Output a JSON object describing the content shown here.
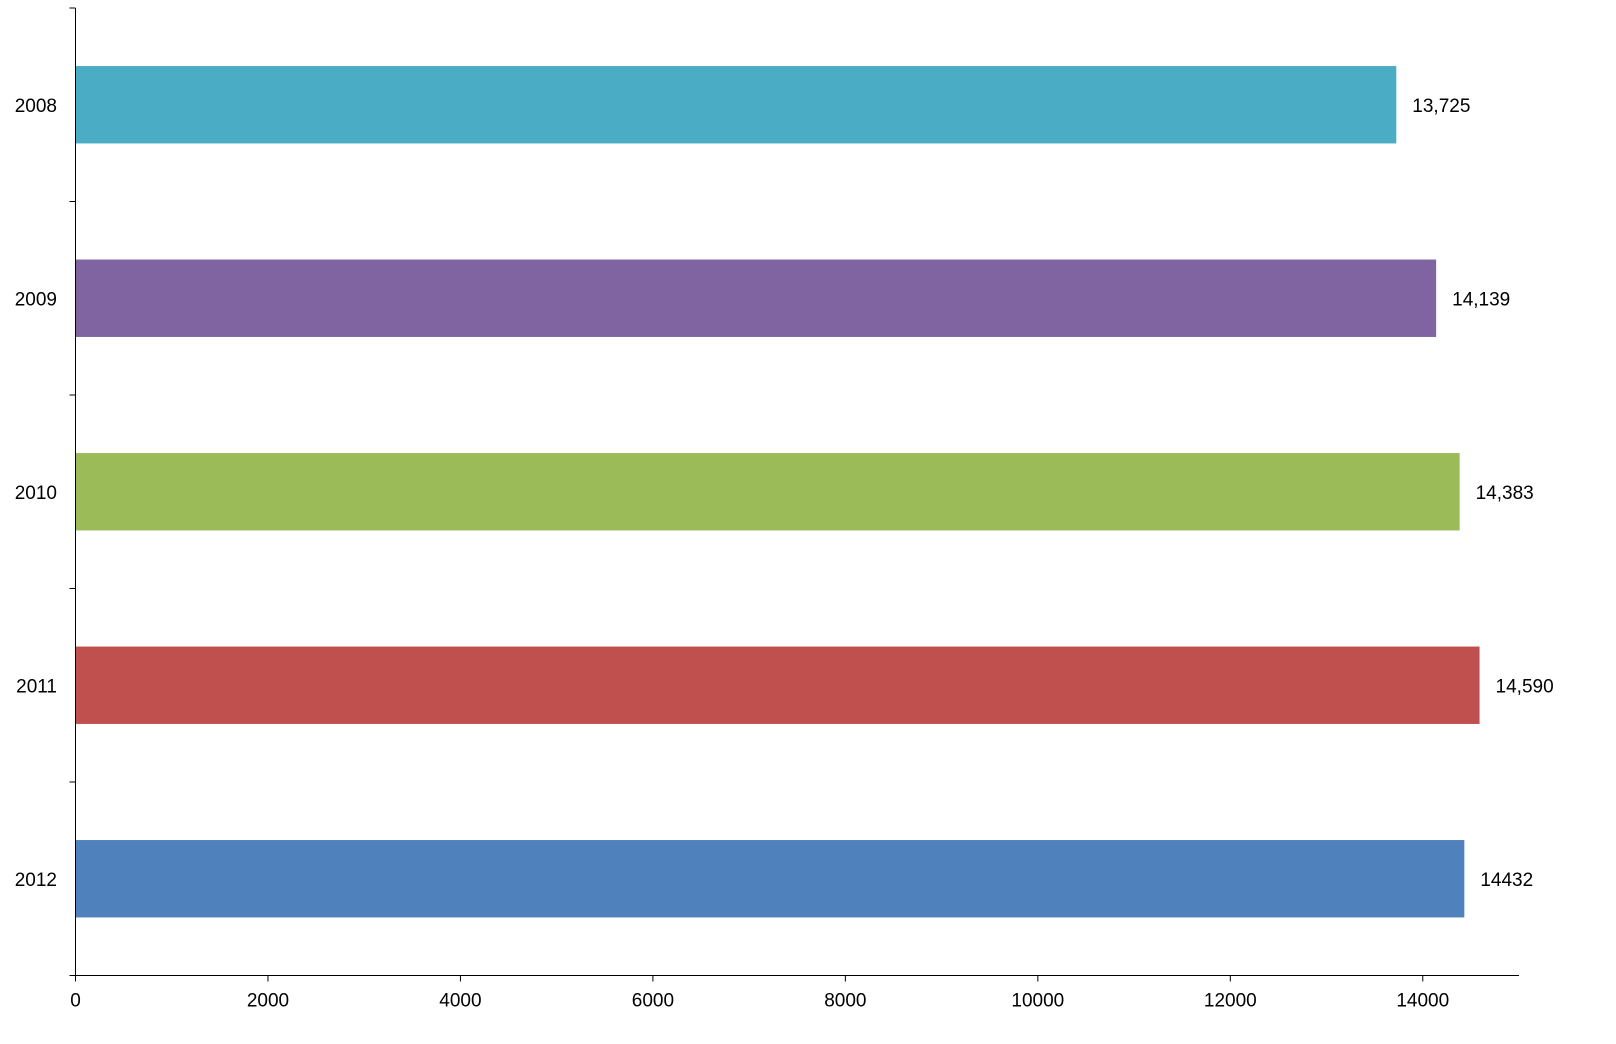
{
  "chart_data": {
    "type": "bar",
    "orientation": "horizontal",
    "categories": [
      "2008",
      "2009",
      "2010",
      "2011",
      "2012"
    ],
    "values": [
      13725,
      14139,
      14383,
      14590,
      14432
    ],
    "data_labels": [
      "13,725",
      "14,139",
      "14,383",
      "14,590",
      "14432"
    ],
    "colors": [
      "#4BACC6",
      "#8064A2",
      "#9BBB59",
      "#C0504D",
      "#4F81BD"
    ],
    "xlim": [
      0,
      15000
    ],
    "xticks": [
      0,
      2000,
      4000,
      6000,
      8000,
      10000,
      12000,
      14000
    ],
    "title": "",
    "xlabel": "",
    "ylabel": "",
    "grid": false,
    "legend": "none"
  }
}
